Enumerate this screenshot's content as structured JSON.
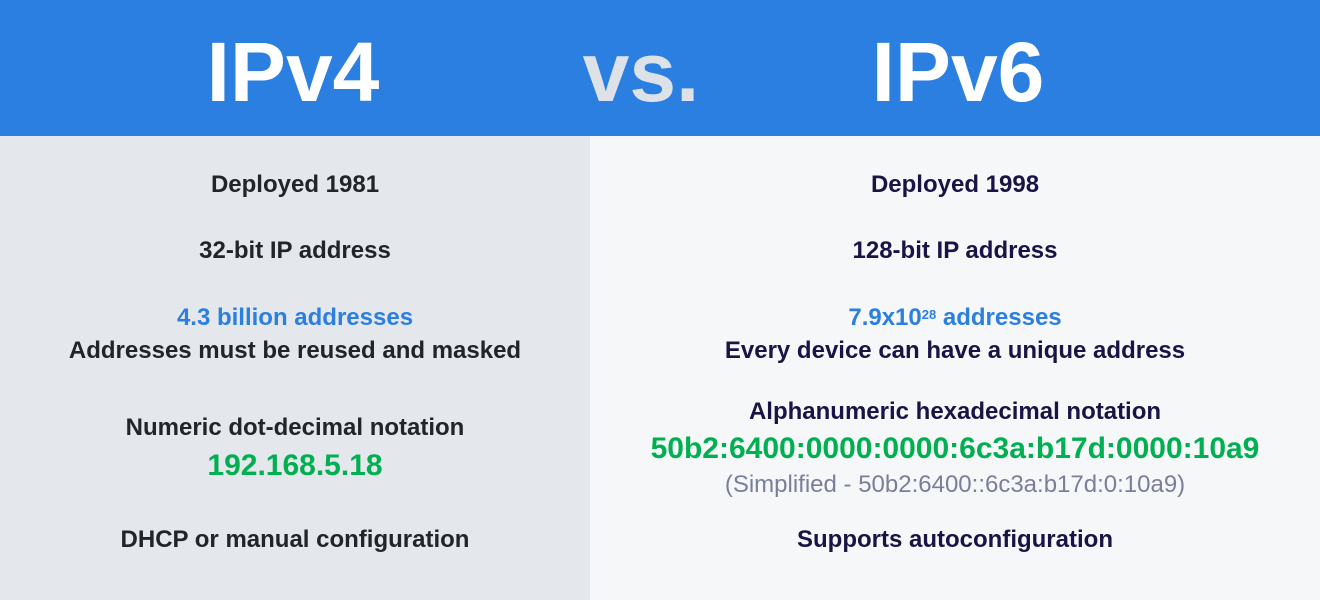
{
  "header": {
    "left_title": "IPv4",
    "vs": "vs.",
    "right_title": "IPv6"
  },
  "ipv4": {
    "deployed": "Deployed 1981",
    "bits": "32-bit IP address",
    "address_count": "4.3 billion addresses",
    "address_note": "Addresses must be reused and masked",
    "notation": "Numeric dot-decimal notation",
    "example": "192.168.5.18",
    "configuration": "DHCP or manual configuration"
  },
  "ipv6": {
    "deployed": "Deployed 1998",
    "bits": "128-bit IP address",
    "address_count_base": "7.9x10",
    "address_count_exp": "28",
    "address_count_suffix": " addresses",
    "address_note": "Every device can have a unique address",
    "notation": "Alphanumeric hexadecimal notation",
    "example": "50b2:6400:0000:0000:6c3a:b17d:0000:10a9",
    "simplified": "(Simplified - 50b2:6400::6c3a:b17d:0:10a9)",
    "configuration": "Supports autoconfiguration"
  },
  "colors": {
    "header": "#2b7fe0",
    "accent_blue": "#2b7fe0",
    "accent_green": "#00b050",
    "left_bg": "#e4e7ec",
    "right_bg": "#f6f7f9"
  }
}
